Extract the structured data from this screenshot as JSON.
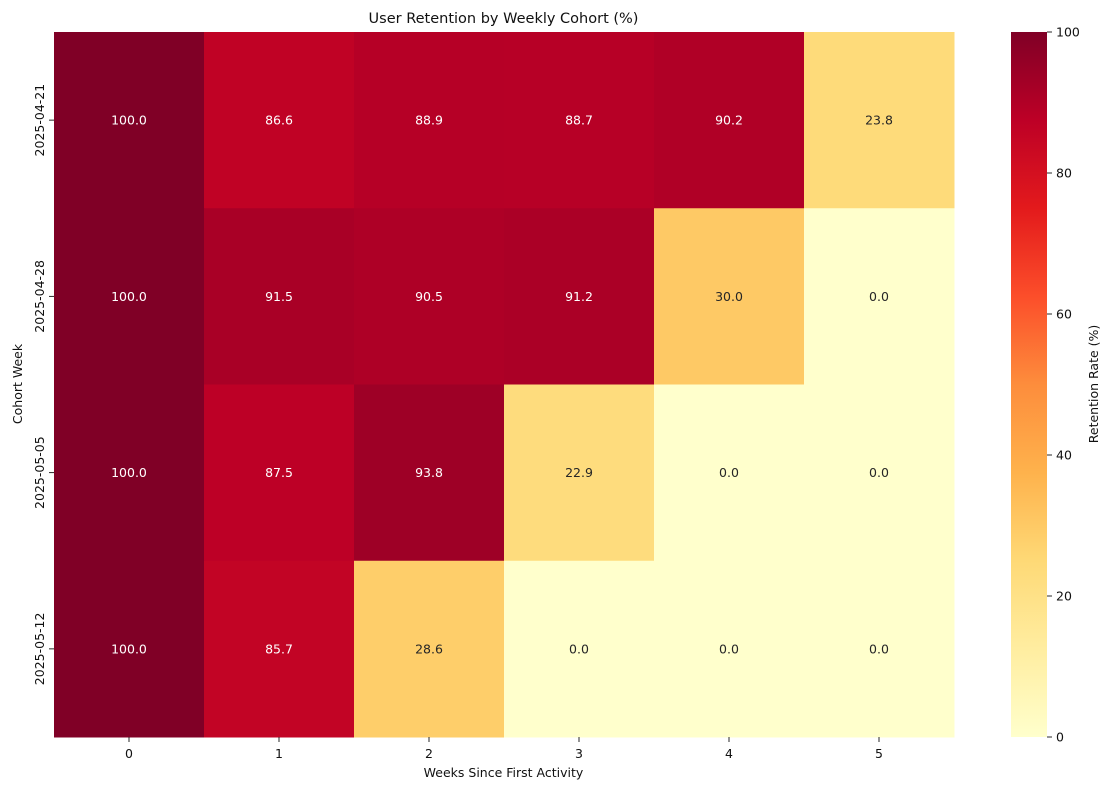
{
  "chart_data": {
    "type": "heatmap",
    "title": "User Retention by Weekly Cohort (%)",
    "xlabel": "Weeks Since First Activity",
    "ylabel": "Cohort Week",
    "x": [
      "0",
      "1",
      "2",
      "3",
      "4",
      "5"
    ],
    "y": [
      "2025-04-21",
      "2025-04-28",
      "2025-05-05",
      "2025-05-12"
    ],
    "values": [
      [
        100.0,
        86.6,
        88.9,
        88.7,
        90.2,
        23.8
      ],
      [
        100.0,
        91.5,
        90.5,
        91.2,
        30.0,
        0.0
      ],
      [
        100.0,
        87.5,
        93.8,
        22.9,
        0.0,
        0.0
      ],
      [
        100.0,
        85.7,
        28.6,
        0.0,
        0.0,
        0.0
      ]
    ],
    "value_format": "0.0",
    "colorbar": {
      "label": "Retention Rate (%)",
      "range": [
        0,
        100
      ],
      "ticks": [
        "0",
        "20",
        "40",
        "60",
        "80",
        "100"
      ],
      "colormap": "YlOrRd",
      "stops": [
        "#ffffcc",
        "#ffeda0",
        "#fed976",
        "#feb24c",
        "#fd8d3c",
        "#fc4e2a",
        "#e31a1c",
        "#bd0026",
        "#800026"
      ]
    },
    "grid": false
  }
}
